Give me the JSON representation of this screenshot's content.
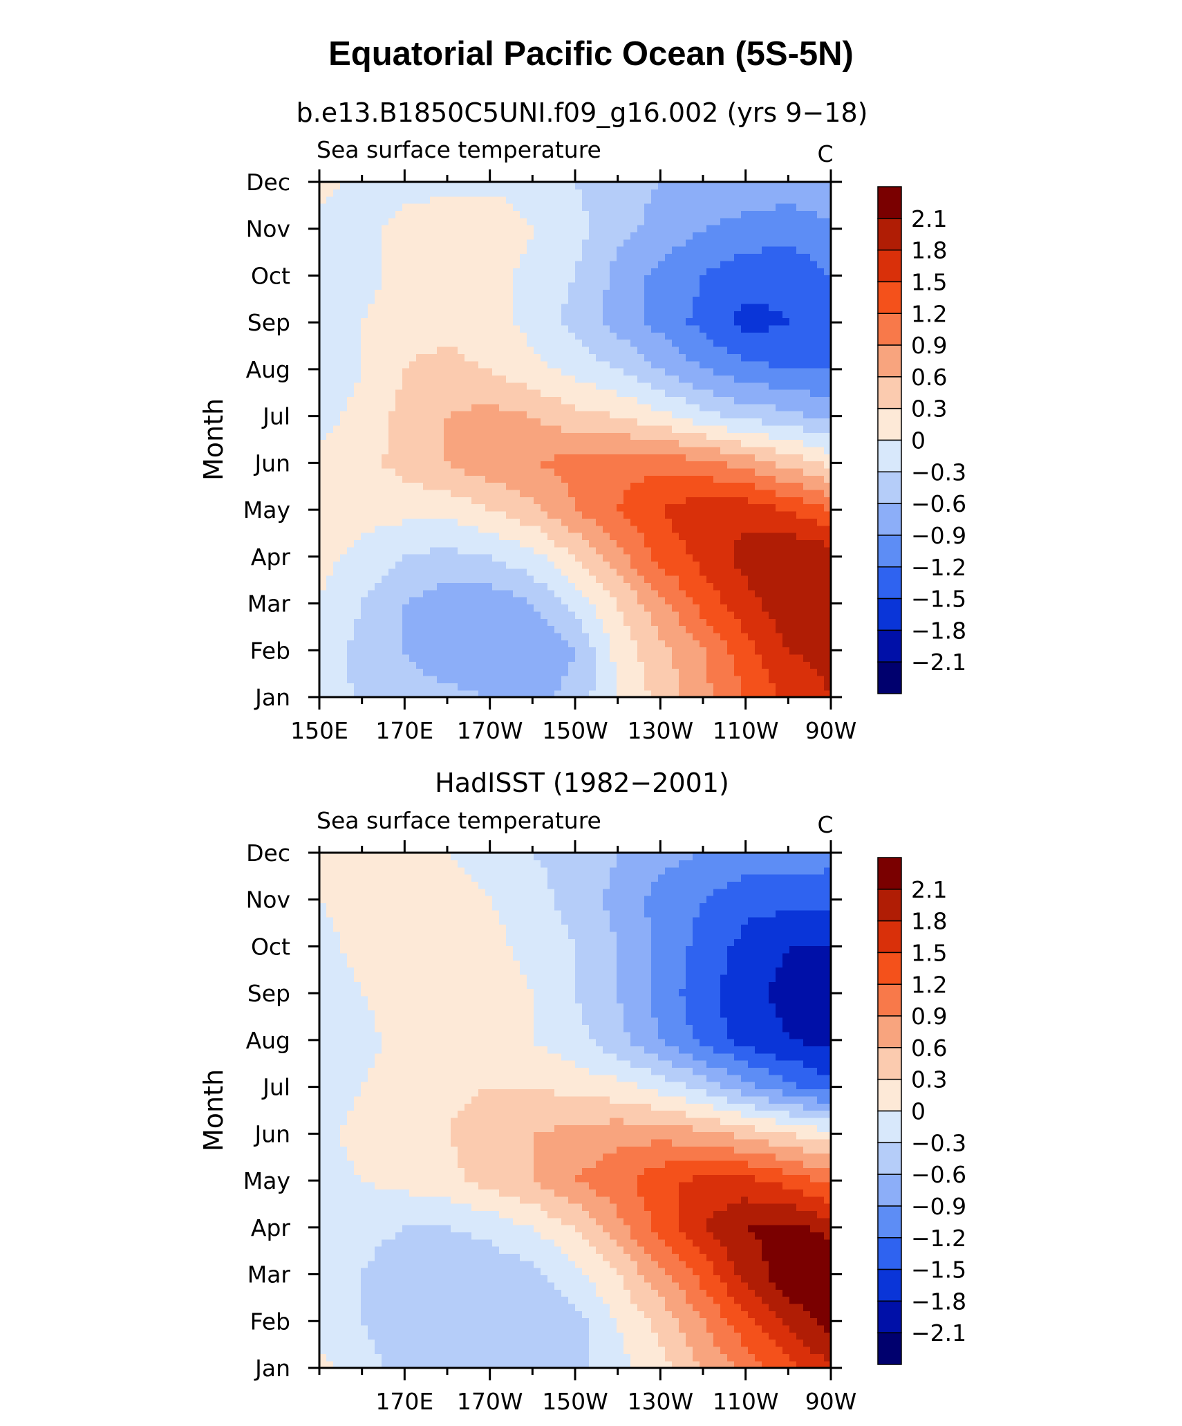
{
  "figure": {
    "title": "Equatorial Pacific Ocean (5S-5N)",
    "colorbar_labels": [
      "2.1",
      "1.8",
      "1.5",
      "1.2",
      "0.9",
      "0.6",
      "0.3",
      "0",
      "−0.3",
      "−0.6",
      "−0.9",
      "−1.2",
      "−1.5",
      "−1.8",
      "−2.1"
    ],
    "colorbar_colors": [
      "#7a0000",
      "#b01d05",
      "#d9300a",
      "#f4511b",
      "#f8794a",
      "#f8a47e",
      "#fbcbaf",
      "#fde9d7",
      "#d8e8fb",
      "#b5cdf9",
      "#8caef8",
      "#5d8df5",
      "#2f63f0",
      "#0a35d8",
      "#0010a8",
      "#00006e"
    ],
    "clevels": [
      -2.4,
      -2.1,
      -1.8,
      -1.5,
      -1.2,
      -0.9,
      -0.6,
      -0.3,
      0,
      0.3,
      0.6,
      0.9,
      1.2,
      1.5,
      1.8,
      2.1,
      2.4
    ]
  },
  "chart_data": [
    {
      "type": "heatmap",
      "title": "b.e13.B1850C5UNI.f09_g16.002 (yrs 9−18)",
      "left_string": "Sea surface temperature",
      "right_string": "C",
      "ylabel": "Month",
      "x_ticks": [
        "150E",
        "170E",
        "170W",
        "150W",
        "130W",
        "110W",
        "90W"
      ],
      "x_lon": [
        150,
        170,
        190,
        210,
        230,
        250,
        270
      ],
      "y_ticks": [
        "Jan",
        "Feb",
        "Mar",
        "Apr",
        "May",
        "Jun",
        "Jul",
        "Aug",
        "Sep",
        "Oct",
        "Nov",
        "Dec"
      ],
      "xlim": [
        150,
        270
      ],
      "x": [
        150,
        160,
        170,
        180,
        190,
        200,
        210,
        220,
        230,
        240,
        250,
        260,
        270
      ],
      "values": [
        [
          0.0,
          -0.4,
          -0.5,
          -0.5,
          -0.6,
          -0.7,
          -0.5,
          0.0,
          0.4,
          0.8,
          1.2,
          1.6,
          1.8
        ],
        [
          -0.1,
          -0.4,
          -0.6,
          -0.8,
          -0.9,
          -0.9,
          -0.6,
          0.1,
          0.5,
          0.9,
          1.4,
          1.8,
          1.9
        ],
        [
          0.0,
          -0.3,
          -0.6,
          -0.8,
          -0.8,
          -0.6,
          -0.2,
          0.3,
          0.8,
          1.3,
          1.7,
          2.0,
          2.0
        ],
        [
          0.1,
          -0.1,
          -0.3,
          -0.4,
          -0.3,
          -0.1,
          0.3,
          0.8,
          1.3,
          1.6,
          1.9,
          2.1,
          2.0
        ],
        [
          0.3,
          0.1,
          0.1,
          0.1,
          0.3,
          0.5,
          0.9,
          1.2,
          1.5,
          1.7,
          1.7,
          1.5,
          1.2
        ],
        [
          0.1,
          0.2,
          0.4,
          0.6,
          0.8,
          0.9,
          1.0,
          1.1,
          1.1,
          1.0,
          0.8,
          0.5,
          0.2
        ],
        [
          -0.1,
          0.1,
          0.4,
          0.6,
          0.7,
          0.6,
          0.4,
          0.3,
          0.1,
          -0.2,
          -0.4,
          -0.5,
          -0.7
        ],
        [
          -0.3,
          0.0,
          0.3,
          0.4,
          0.3,
          0.1,
          -0.1,
          -0.3,
          -0.6,
          -0.9,
          -1.1,
          -1.2,
          -1.2
        ],
        [
          -0.2,
          0.0,
          0.2,
          0.2,
          0.1,
          -0.1,
          -0.4,
          -0.7,
          -1.0,
          -1.3,
          -1.6,
          -1.5,
          -1.3
        ],
        [
          -0.1,
          -0.1,
          0.1,
          0.2,
          0.1,
          -0.1,
          -0.3,
          -0.7,
          -1.0,
          -1.2,
          -1.4,
          -1.4,
          -1.2
        ],
        [
          -0.1,
          -0.1,
          0.1,
          0.2,
          0.3,
          0.0,
          -0.2,
          -0.5,
          -0.7,
          -0.9,
          -1.0,
          -1.1,
          -1.0
        ],
        [
          0.1,
          -0.1,
          -0.1,
          -0.1,
          -0.1,
          -0.2,
          -0.3,
          -0.5,
          -0.6,
          -0.7,
          -0.7,
          -0.7,
          -0.6
        ]
      ]
    },
    {
      "type": "heatmap",
      "title": "HadISST (1982−2001)",
      "left_string": "Sea surface temperature",
      "right_string": "C",
      "ylabel": "Month",
      "x_ticks": [
        "170E",
        "170W",
        "150W",
        "130W",
        "110W",
        "90W"
      ],
      "x_lon": [
        170,
        190,
        210,
        230,
        250,
        270
      ],
      "y_ticks": [
        "Jan",
        "Feb",
        "Mar",
        "Apr",
        "May",
        "Jun",
        "Jul",
        "Aug",
        "Sep",
        "Oct",
        "Nov",
        "Dec"
      ],
      "xlim": [
        150,
        270
      ],
      "x": [
        150,
        160,
        170,
        180,
        190,
        200,
        210,
        220,
        230,
        240,
        250,
        260,
        270
      ],
      "values": [
        [
          0.1,
          -0.2,
          -0.4,
          -0.5,
          -0.5,
          -0.5,
          -0.4,
          -0.1,
          0.2,
          0.6,
          1.0,
          1.4,
          1.8
        ],
        [
          -0.2,
          -0.3,
          -0.5,
          -0.6,
          -0.6,
          -0.6,
          -0.4,
          0.0,
          0.4,
          0.9,
          1.4,
          1.9,
          2.2
        ],
        [
          -0.2,
          -0.3,
          -0.5,
          -0.6,
          -0.5,
          -0.4,
          -0.1,
          0.3,
          0.8,
          1.3,
          1.9,
          2.3,
          2.4
        ],
        [
          -0.2,
          -0.2,
          -0.3,
          -0.3,
          -0.2,
          0.0,
          0.3,
          0.8,
          1.3,
          1.8,
          2.1,
          2.2,
          2.0
        ],
        [
          -0.1,
          0.0,
          0.1,
          0.2,
          0.4,
          0.6,
          0.9,
          1.1,
          1.4,
          1.6,
          1.6,
          1.4,
          1.1
        ],
        [
          -0.1,
          0.1,
          0.2,
          0.3,
          0.5,
          0.6,
          0.7,
          0.8,
          0.8,
          0.7,
          0.5,
          0.3,
          0.1
        ],
        [
          -0.2,
          0.0,
          0.2,
          0.2,
          0.3,
          0.3,
          0.2,
          0.1,
          -0.1,
          -0.4,
          -0.8,
          -1.1,
          -1.4
        ],
        [
          -0.2,
          -0.1,
          0.1,
          0.2,
          0.1,
          0.0,
          -0.2,
          -0.5,
          -0.9,
          -1.3,
          -1.6,
          -1.8,
          -1.9
        ],
        [
          -0.2,
          0.0,
          0.2,
          0.3,
          0.2,
          0.0,
          -0.3,
          -0.6,
          -1.0,
          -1.4,
          -1.7,
          -1.9,
          -2.0
        ],
        [
          -0.1,
          0.1,
          0.2,
          0.2,
          0.1,
          -0.1,
          -0.3,
          -0.6,
          -1.0,
          -1.3,
          -1.6,
          -1.8,
          -1.8
        ],
        [
          0.0,
          0.1,
          0.2,
          0.1,
          0.0,
          -0.2,
          -0.4,
          -0.7,
          -1.0,
          -1.2,
          -1.4,
          -1.4,
          -1.4
        ],
        [
          0.1,
          0.1,
          0.1,
          0.0,
          -0.1,
          -0.3,
          -0.4,
          -0.6,
          -0.8,
          -0.9,
          -1.0,
          -1.0,
          -1.1
        ]
      ]
    }
  ]
}
